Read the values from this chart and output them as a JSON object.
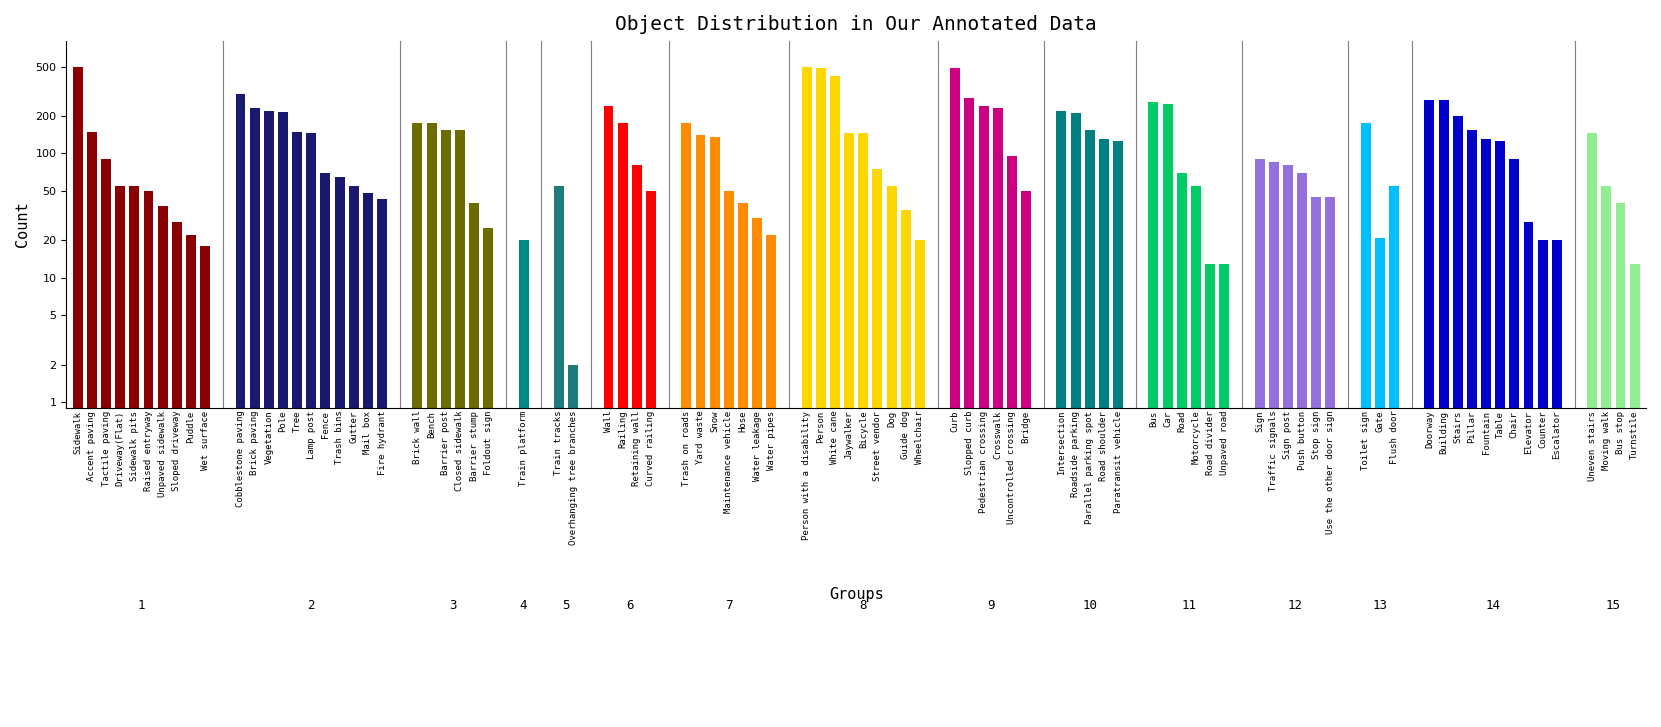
{
  "title": "Object Distribution in Our Annotated Data",
  "xlabel": "Groups",
  "ylabel": "Count",
  "groups": [
    {
      "id": 1,
      "color": "#8B0000",
      "items": [
        {
          "label": "Sidewalk",
          "value": 500
        },
        {
          "label": "Accent paving",
          "value": 150
        },
        {
          "label": "Tactile paving",
          "value": 90
        },
        {
          "label": "Driveway(Flat)",
          "value": 55
        },
        {
          "label": "Sidewalk pits",
          "value": 55
        },
        {
          "label": "Raised entryway",
          "value": 50
        },
        {
          "label": "Unpaved sidewalk",
          "value": 38
        },
        {
          "label": "Sloped driveway",
          "value": 28
        },
        {
          "label": "Puddle",
          "value": 22
        },
        {
          "label": "Wet surface",
          "value": 18
        }
      ]
    },
    {
      "id": 2,
      "color": "#191970",
      "items": [
        {
          "label": "Cobblestone paving",
          "value": 300
        },
        {
          "label": "Brick paving",
          "value": 230
        },
        {
          "label": "Vegetation",
          "value": 220
        },
        {
          "label": "Pole",
          "value": 215
        },
        {
          "label": "Tree",
          "value": 150
        },
        {
          "label": "Lamp post",
          "value": 145
        },
        {
          "label": "Fence",
          "value": 70
        },
        {
          "label": "Trash bins",
          "value": 65
        },
        {
          "label": "Gutter",
          "value": 55
        },
        {
          "label": "Mail box",
          "value": 48
        },
        {
          "label": "Fire hydrant",
          "value": 43
        }
      ]
    },
    {
      "id": 3,
      "color": "#6B6B00",
      "items": [
        {
          "label": "Brick wall",
          "value": 175
        },
        {
          "label": "Bench",
          "value": 175
        },
        {
          "label": "Barrier post",
          "value": 155
        },
        {
          "label": "Closed sidewalk",
          "value": 155
        },
        {
          "label": "Barrier stump",
          "value": 40
        },
        {
          "label": "Foldout sign",
          "value": 25
        }
      ]
    },
    {
      "id": 4,
      "color": "#008B8B",
      "items": [
        {
          "label": "Train platform",
          "value": 20
        }
      ]
    },
    {
      "id": 5,
      "color": "#1E7B7B",
      "items": [
        {
          "label": "Train tracks",
          "value": 55
        },
        {
          "label": "Overhanging tree branches",
          "value": 2
        }
      ]
    },
    {
      "id": 6,
      "color": "#FF0000",
      "items": [
        {
          "label": "Wall",
          "value": 240
        },
        {
          "label": "Railing",
          "value": 175
        },
        {
          "label": "Retaining wall",
          "value": 80
        },
        {
          "label": "Curved railing",
          "value": 50
        }
      ]
    },
    {
      "id": 7,
      "color": "#FF8C00",
      "items": [
        {
          "label": "Trash on roads",
          "value": 175
        },
        {
          "label": "Yard waste",
          "value": 140
        },
        {
          "label": "Snow",
          "value": 135
        },
        {
          "label": "Maintenance vehicle",
          "value": 50
        },
        {
          "label": "Hose",
          "value": 40
        },
        {
          "label": "Water leakage",
          "value": 30
        },
        {
          "label": "Water pipes",
          "value": 22
        }
      ]
    },
    {
      "id": 8,
      "color": "#FFD700",
      "items": [
        {
          "label": "Person with a disability",
          "value": 500
        },
        {
          "label": "Person",
          "value": 490
        },
        {
          "label": "White cane",
          "value": 420
        },
        {
          "label": "Jaywalker",
          "value": 145
        },
        {
          "label": "Bicycle",
          "value": 145
        },
        {
          "label": "Street vendor",
          "value": 75
        },
        {
          "label": "Dog",
          "value": 55
        },
        {
          "label": "Guide dog",
          "value": 35
        },
        {
          "label": "Wheelchair",
          "value": 20
        }
      ]
    },
    {
      "id": 9,
      "color": "#CC0080",
      "items": [
        {
          "label": "Curb",
          "value": 490
        },
        {
          "label": "Slopped curb",
          "value": 280
        },
        {
          "label": "Pedestrian crossing",
          "value": 240
        },
        {
          "label": "Crosswalk",
          "value": 230
        },
        {
          "label": "Uncontrolled crossing",
          "value": 95
        },
        {
          "label": "Bridge",
          "value": 50
        }
      ]
    },
    {
      "id": 10,
      "color": "#008080",
      "items": [
        {
          "label": "Intersection",
          "value": 220
        },
        {
          "label": "Roadside parking",
          "value": 210
        },
        {
          "label": "Parallel parking spot",
          "value": 155
        },
        {
          "label": "Road shoulder",
          "value": 130
        },
        {
          "label": "Paratransit vehicle",
          "value": 125
        }
      ]
    },
    {
      "id": 11,
      "color": "#00CC66",
      "items": [
        {
          "label": "Bus",
          "value": 260
        },
        {
          "label": "Car",
          "value": 250
        },
        {
          "label": "Road",
          "value": 70
        },
        {
          "label": "Motorcycle",
          "value": 55
        },
        {
          "label": "Road divider",
          "value": 13
        },
        {
          "label": "Unpaved road",
          "value": 13
        }
      ]
    },
    {
      "id": 12,
      "color": "#9370DB",
      "items": [
        {
          "label": "Sign",
          "value": 90
        },
        {
          "label": "Traffic signals",
          "value": 85
        },
        {
          "label": "Sign post",
          "value": 80
        },
        {
          "label": "Push button",
          "value": 70
        },
        {
          "label": "Stop sign",
          "value": 45
        },
        {
          "label": "Use the other door sign",
          "value": 45
        }
      ]
    },
    {
      "id": 13,
      "color": "#00BFFF",
      "items": [
        {
          "label": "Toilet sign",
          "value": 175
        },
        {
          "label": "Gate",
          "value": 21
        },
        {
          "label": "Flush door",
          "value": 55
        }
      ]
    },
    {
      "id": 14,
      "color": "#0000CC",
      "items": [
        {
          "label": "Doorway",
          "value": 270
        },
        {
          "label": "Building",
          "value": 270
        },
        {
          "label": "Stairs",
          "value": 200
        },
        {
          "label": "Pillar",
          "value": 155
        },
        {
          "label": "Fountain",
          "value": 130
        },
        {
          "label": "Table",
          "value": 125
        },
        {
          "label": "Chair",
          "value": 90
        },
        {
          "label": "Elevator",
          "value": 28
        },
        {
          "label": "Counter",
          "value": 20
        },
        {
          "label": "Escalator",
          "value": 20
        }
      ]
    },
    {
      "id": 15,
      "color": "#90EE90",
      "items": [
        {
          "label": "Uneven stairs",
          "value": 145
        },
        {
          "label": "Moving walk",
          "value": 55
        },
        {
          "label": "Bus stop",
          "value": 40
        },
        {
          "label": "Turnstile",
          "value": 13
        }
      ]
    }
  ]
}
